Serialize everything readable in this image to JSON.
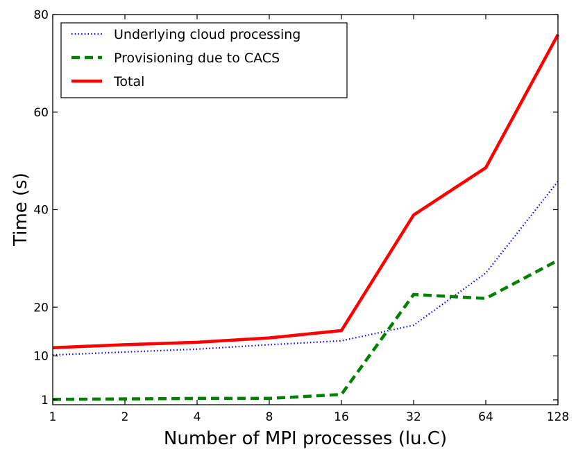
{
  "chart_data": {
    "type": "line",
    "xlabel": "Number of MPI processes (lu.C)",
    "ylabel": "Time (s)",
    "x_scale": "log2",
    "x": [
      1,
      2,
      4,
      8,
      16,
      32,
      64,
      128
    ],
    "x_tick_labels": [
      "1",
      "2",
      "4",
      "8",
      "16",
      "32",
      "64",
      "128"
    ],
    "y_ticks": [
      1,
      10,
      20,
      40,
      60,
      80
    ],
    "y_tick_labels": [
      "1",
      "10",
      "20",
      "40",
      "60",
      "80"
    ],
    "ylim": [
      0,
      80
    ],
    "grid": false,
    "legend_position": "top-left",
    "series": [
      {
        "name": "Underlying cloud processing",
        "style": "dotted",
        "color": "#0000ff",
        "values": [
          10.2,
          10.8,
          11.4,
          12.3,
          13.1,
          16.3,
          27.0,
          45.8
        ]
      },
      {
        "name": "Provisioning due to CACS",
        "style": "dashed",
        "color": "#008000",
        "values": [
          1.1,
          1.2,
          1.3,
          1.3,
          2.1,
          22.6,
          21.8,
          29.6
        ]
      },
      {
        "name": "Total",
        "style": "solid",
        "color": "#ff0000",
        "values": [
          11.7,
          12.3,
          12.8,
          13.7,
          15.2,
          38.9,
          48.6,
          75.9
        ]
      }
    ]
  }
}
